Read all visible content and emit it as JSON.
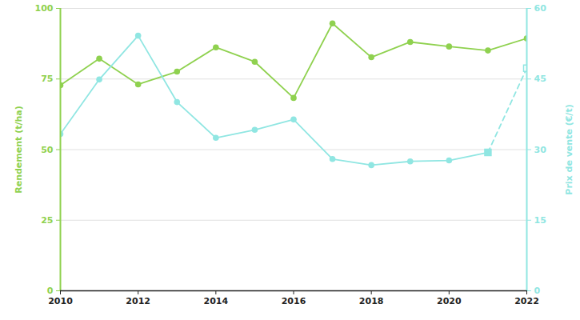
{
  "chart_data": {
    "type": "line",
    "x": [
      2010,
      2011,
      2012,
      2013,
      2014,
      2015,
      2016,
      2017,
      2018,
      2019,
      2020,
      2021,
      2022
    ],
    "xlim": [
      2010,
      2022
    ],
    "xticks": [
      2010,
      2012,
      2014,
      2016,
      2018,
      2020,
      2022
    ],
    "y_label": "Rendement (t/ha)",
    "y2_label": "Prix de vente (€/t)",
    "ylim": [
      0,
      100
    ],
    "yticks": [
      0,
      25,
      50,
      75,
      100
    ],
    "y2lim": [
      0,
      60
    ],
    "y2ticks": [
      0,
      15,
      30,
      45,
      60
    ],
    "grid": true,
    "series": [
      {
        "name": "Rendement (t/ha)",
        "color": "#8fd14f",
        "marker": "circle",
        "line_style": "solid",
        "values": [
          72.8,
          82.2,
          73.1,
          77.6,
          86.2,
          81.1,
          68.3,
          94.7,
          82.7,
          88.1,
          86.5,
          85.1,
          89.4
        ]
      },
      {
        "name": "Prix de vente (€/t)",
        "color": "#90e6e2",
        "marker": "circle",
        "line_style": "solid",
        "axis": "y2",
        "values": [
          33.3,
          44.9,
          54.2,
          40.1,
          32.5,
          34.2,
          36.4,
          28.0,
          26.7,
          27.5,
          27.7,
          29.4,
          null
        ]
      },
      {
        "name": "Prix de vente (€/t)",
        "color": "#90e6e2",
        "marker": "square",
        "line_style": "dashed",
        "axis": "y2",
        "values": [
          null,
          null,
          null,
          null,
          null,
          null,
          null,
          null,
          null,
          null,
          null,
          29.4,
          47.3
        ]
      }
    ]
  }
}
